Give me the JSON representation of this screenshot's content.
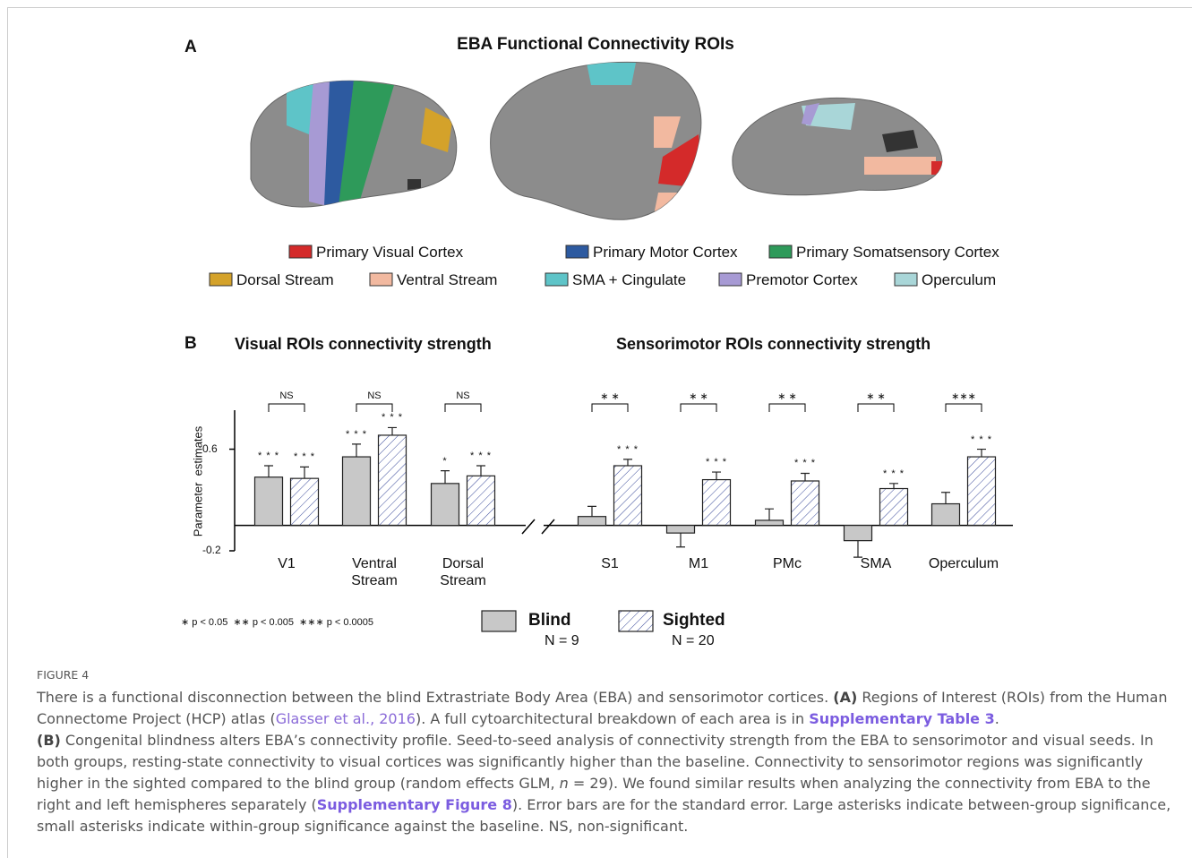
{
  "figure": {
    "panel_a": {
      "label": "A",
      "title": "EBA Functional Connectivity ROIs",
      "legend": [
        {
          "name": "Primary Visual Cortex",
          "color": "#d42a2a"
        },
        {
          "name": "Primary Motor Cortex",
          "color": "#2d5aa0"
        },
        {
          "name": "Primary Somatsensory Cortex",
          "color": "#2e9a5a"
        },
        {
          "name": "Dorsal Stream",
          "color": "#d4a22a"
        },
        {
          "name": "Ventral Stream",
          "color": "#f2b9a0"
        },
        {
          "name": "SMA + Cingulate",
          "color": "#5ec4c8"
        },
        {
          "name": "Premotor Cortex",
          "color": "#a79ad4"
        },
        {
          "name": "Operculum",
          "color": "#a9d6d8"
        }
      ]
    },
    "panel_b": {
      "label": "B",
      "significance_key": [
        "∗ p < 0.05",
        "∗∗ p < 0.005",
        "∗∗∗ p < 0.0005"
      ]
    }
  },
  "chart_data": [
    {
      "type": "bar",
      "title": "Visual ROIs connectivity strength",
      "y_label": "Parameter  estimates",
      "categories": [
        "V1",
        "Ventral\nStream",
        "Dorsal\nStream"
      ],
      "ylim": [
        -0.2,
        0.9
      ],
      "yticks": [
        -0.2,
        0.6
      ],
      "group_significance": [
        "NS",
        "NS",
        "NS"
      ],
      "series": [
        {
          "name": "Blind",
          "n_label": "N = 9",
          "color": "#c8c8c8",
          "hatch": false,
          "values": [
            0.38,
            0.54,
            0.33
          ],
          "errors": [
            0.09,
            0.1,
            0.1
          ],
          "significance": [
            "* * *",
            "* * *",
            "*"
          ]
        },
        {
          "name": "Sighted",
          "n_label": "N = 20",
          "color": "#ffffff",
          "hatch": true,
          "hatch_color": "#3a4a9a",
          "values": [
            0.37,
            0.71,
            0.39
          ],
          "errors": [
            0.09,
            0.06,
            0.08
          ],
          "significance": [
            "* * *",
            "* * *",
            "* * *"
          ]
        }
      ]
    },
    {
      "type": "bar",
      "title": "Sensorimotor ROIs connectivity strength",
      "categories": [
        "S1",
        "M1",
        "PMc",
        "SMA",
        "Operculum"
      ],
      "ylim": [
        -0.2,
        0.9
      ],
      "group_significance": [
        "∗ ∗",
        "∗ ∗",
        "∗ ∗",
        "∗ ∗",
        "∗∗∗"
      ],
      "series": [
        {
          "color": "#c8c8c8",
          "hatch": false,
          "values": [
            0.07,
            -0.06,
            0.04,
            -0.12,
            0.17
          ],
          "errors": [
            0.08,
            0.11,
            0.09,
            0.13,
            0.09
          ],
          "significance": [
            null,
            null,
            null,
            null,
            null
          ]
        },
        {
          "color": "#ffffff",
          "hatch": true,
          "hatch_color": "#3a4a9a",
          "values": [
            0.47,
            0.36,
            0.35,
            0.29,
            0.54
          ],
          "errors": [
            0.05,
            0.06,
            0.06,
            0.04,
            0.06
          ],
          "significance": [
            "* * *",
            "* * *",
            "* * *",
            "* * *",
            "* * *"
          ]
        }
      ]
    }
  ],
  "caption": {
    "label": "FIGURE 4",
    "segments": [
      {
        "text": "There is a functional disconnection between the blind Extrastriate Body Area (EBA) and sensorimotor cortices. "
      },
      {
        "text": "(A)",
        "style": "bold"
      },
      {
        "text": " Regions of Interest (ROIs) from the Human Connectome Project (HCP) atlas ("
      },
      {
        "text": "Glasser et al., 2016",
        "style": "link"
      },
      {
        "text": "). A full cytoarchitectural breakdown of each area is in "
      },
      {
        "text": "Supplementary Table 3",
        "style": "strong-link"
      },
      {
        "text": "."
      },
      {
        "text": "(B)",
        "style": "bold",
        "newline": true
      },
      {
        "text": " Congenital blindness alters EBA’s connectivity profile. Seed-to-seed analysis of connectivity strength from the EBA to sensorimotor and visual seeds. In both groups, resting-state connectivity to visual cortices was significantly higher than the baseline. Connectivity to sensorimotor regions was significantly higher in the sighted compared to the blind group (random effects GLM, "
      },
      {
        "text": "n",
        "style": "italic"
      },
      {
        "text": " = 29). We found similar results when analyzing the connectivity from EBA to the right and left hemispheres separately ("
      },
      {
        "text": "Supplementary Figure 8",
        "style": "strong-link"
      },
      {
        "text": "). Error bars are for the standard error. Large asterisks indicate between-group significance, small asterisks indicate within-group significance against the baseline. NS, non-significant."
      }
    ]
  }
}
